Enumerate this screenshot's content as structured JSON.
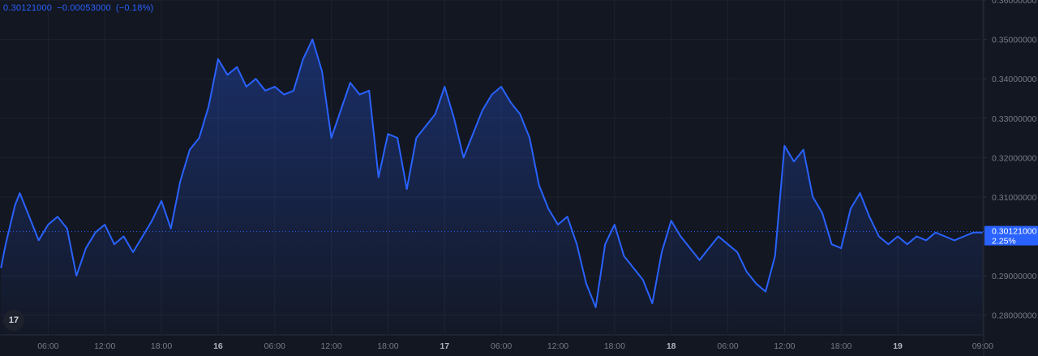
{
  "header": {
    "price": "0.30121000",
    "change": "−0.00053000",
    "change_pct": "(−0.18%)"
  },
  "logo_text": "17",
  "colors": {
    "background": "#131722",
    "line": "#2962ff",
    "grid": "#1e222d",
    "axis_text": "#787b86",
    "label_bg": "#2962ff",
    "label_text": "#ffffff"
  },
  "chart_data": {
    "type": "area",
    "title": "",
    "xlabel": "",
    "ylabel": "",
    "ylim": [
      0.275,
      0.36
    ],
    "y_ticks": [
      "0.36000000",
      "0.35000000",
      "0.34000000",
      "0.33000000",
      "0.32000000",
      "0.31000000",
      "0.29000000",
      "0.28000000"
    ],
    "y_tick_values": [
      0.36,
      0.35,
      0.34,
      0.33,
      0.32,
      0.31,
      0.29,
      0.28
    ],
    "x_ticks": [
      "06:00",
      "12:00",
      "18:00",
      "16",
      "06:00",
      "12:00",
      "18:00",
      "17",
      "06:00",
      "12:00",
      "18:00",
      "18",
      "06:00",
      "12:00",
      "18:00",
      "19",
      "09:00"
    ],
    "x_tick_hours": [
      6,
      12,
      18,
      24,
      30,
      36,
      42,
      48,
      54,
      60,
      66,
      72,
      78,
      84,
      90,
      96,
      105
    ],
    "x_tick_bold": [
      false,
      false,
      false,
      true,
      false,
      false,
      false,
      true,
      false,
      false,
      false,
      true,
      false,
      false,
      false,
      true,
      false
    ],
    "x_range_hours": [
      0.9,
      105.1
    ],
    "last_price_label": "0.30121000",
    "last_change_label": "2.25%",
    "last_value": 0.30121,
    "series": [
      {
        "x": [
          1,
          1.5,
          2,
          2.5,
          3,
          4,
          5,
          6,
          7,
          8,
          9,
          10,
          11,
          12,
          13,
          14,
          15,
          16,
          17,
          18,
          19,
          20,
          21,
          22,
          23,
          24,
          25,
          26,
          27,
          28,
          29,
          30,
          31,
          32,
          33,
          34,
          35,
          36,
          37,
          38,
          39,
          40,
          41,
          42,
          43,
          44,
          45,
          46,
          47,
          48,
          49,
          50,
          51,
          52,
          53,
          54,
          55,
          56,
          57,
          58,
          59,
          60,
          61,
          62,
          63,
          64,
          65,
          66,
          67,
          68,
          69,
          70,
          71,
          72,
          73,
          74,
          75,
          76,
          77,
          78,
          79,
          80,
          81,
          82,
          83,
          84,
          85,
          86,
          87,
          88,
          89,
          90,
          91,
          92,
          93,
          94,
          95,
          96,
          97,
          98,
          99,
          100,
          101,
          102,
          103,
          104,
          105
        ],
        "values": [
          0.292,
          0.298,
          0.303,
          0.308,
          0.311,
          0.305,
          0.299,
          0.303,
          0.305,
          0.302,
          0.29,
          0.297,
          0.301,
          0.303,
          0.298,
          0.3,
          0.296,
          0.3,
          0.304,
          0.309,
          0.302,
          0.314,
          0.322,
          0.325,
          0.333,
          0.345,
          0.341,
          0.343,
          0.338,
          0.34,
          0.337,
          0.338,
          0.336,
          0.337,
          0.345,
          0.35,
          0.342,
          0.325,
          0.332,
          0.339,
          0.336,
          0.337,
          0.315,
          0.326,
          0.325,
          0.312,
          0.325,
          0.328,
          0.331,
          0.338,
          0.33,
          0.32,
          0.326,
          0.332,
          0.336,
          0.338,
          0.334,
          0.331,
          0.325,
          0.313,
          0.307,
          0.303,
          0.305,
          0.298,
          0.288,
          0.282,
          0.298,
          0.303,
          0.295,
          0.292,
          0.289,
          0.283,
          0.296,
          0.304,
          0.3,
          0.297,
          0.294,
          0.297,
          0.3,
          0.298,
          0.296,
          0.291,
          0.288,
          0.286,
          0.295,
          0.323,
          0.319,
          0.322,
          0.31,
          0.306,
          0.298,
          0.297,
          0.307,
          0.311,
          0.305,
          0.3,
          0.298,
          0.3,
          0.298,
          0.3,
          0.299,
          0.301,
          0.3,
          0.299,
          0.3,
          0.301,
          0.301
        ]
      }
    ]
  }
}
